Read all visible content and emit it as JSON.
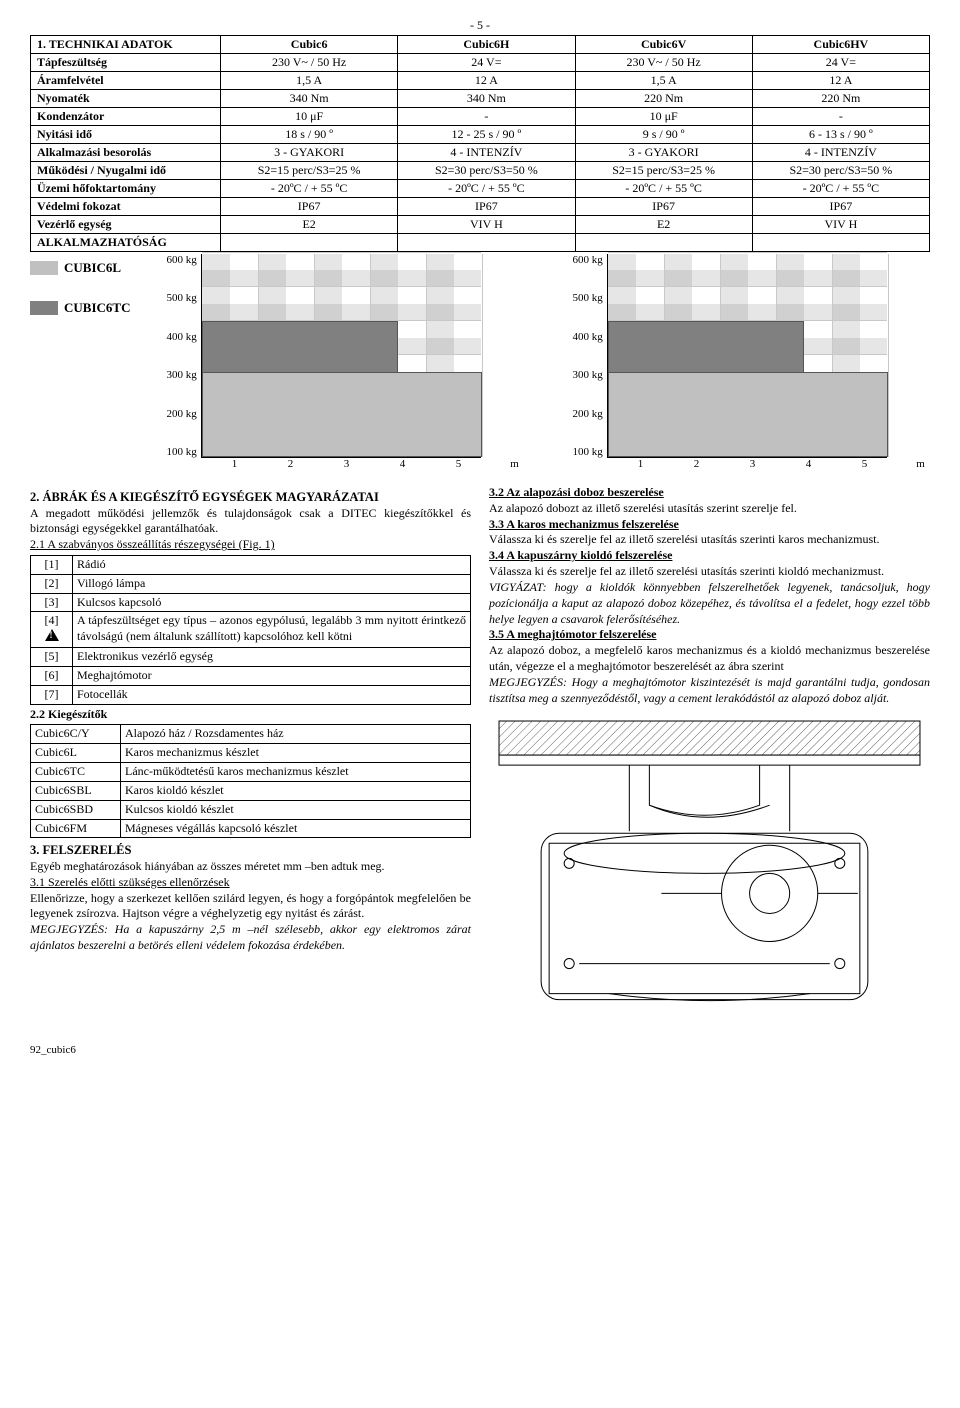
{
  "page_number": "- 5 -",
  "tech_table": {
    "headers": [
      "1. TECHNIKAI ADATOK",
      "Cubic6",
      "Cubic6H",
      "Cubic6V",
      "Cubic6HV"
    ],
    "rows": [
      [
        "Tápfeszültség",
        "230 V~ / 50 Hz",
        "24 V=",
        "230 V~ / 50 Hz",
        "24 V="
      ],
      [
        "Áramfelvétel",
        "1,5 A",
        "12 A",
        "1,5 A",
        "12 A"
      ],
      [
        "Nyomaték",
        "340 Nm",
        "340 Nm",
        "220 Nm",
        "220 Nm"
      ],
      [
        "Kondenzátor",
        "10 μF",
        "-",
        "10 μF",
        "-"
      ],
      [
        "Nyitási idő",
        "18 s / 90 º",
        "12 - 25 s / 90 º",
        "9 s / 90 º",
        "6 - 13 s / 90 º"
      ],
      [
        "Alkalmazási besorolás",
        "3 - GYAKORI",
        "4 - INTENZÍV",
        "3 - GYAKORI",
        "4 - INTENZÍV"
      ],
      [
        "Működési / Nyugalmi idő",
        "S2=15 perc/S3=25 %",
        "S2=30 perc/S3=50 %",
        "S2=15 perc/S3=25 %",
        "S2=30 perc/S3=50 %"
      ],
      [
        "Üzemi hőfoktartomány",
        "- 20ºC / + 55 ºC",
        "- 20ºC / + 55 ºC",
        "- 20ºC / + 55 ºC",
        "- 20ºC / + 55 ºC"
      ],
      [
        "Védelmi fokozat",
        "IP67",
        "IP67",
        "IP67",
        "IP67"
      ],
      [
        "Vezérlő egység",
        "E2",
        "VIV H",
        "E2",
        "VIV H"
      ],
      [
        "ALKALMAZHATÓSÁG",
        "",
        "",
        "",
        ""
      ]
    ]
  },
  "legend": {
    "l": {
      "label": "CUBIC6L",
      "color": "#c0c0c0"
    },
    "tc": {
      "label": "CUBIC6TC",
      "color": "#808080"
    }
  },
  "chart": {
    "type": "bar",
    "y_labels": [
      "600 kg",
      "500 kg",
      "400 kg",
      "300 kg",
      "200 kg",
      "100 kg"
    ],
    "y_max": 600,
    "y_tick_count": 6,
    "x_labels": [
      "1",
      "2",
      "3",
      "4",
      "5",
      "m"
    ],
    "bg_pattern_color": "#e6e6e6",
    "grid_color": "#c8c8c8",
    "series": [
      {
        "color": "#808080",
        "xstart": 0,
        "width_m": 3.5,
        "height_kg": 400
      },
      {
        "color": "#c0c0c0",
        "xstart": 0,
        "width_m": 5,
        "height_kg": 250
      }
    ]
  },
  "section2": {
    "title": "2. ÁBRÁK ÉS A KIEGÉSZÍTŐ EGYSÉGEK MAGYARÁZATAI",
    "intro": "A megadott működési jellemzők és tulajdonságok csak a DITEC kiegészítőkkel és biztonsági egységekkel garantálhatóak.",
    "sub21": "2.1  A szabványos összeállítás részegységei (Fig. 1)",
    "list": [
      [
        "[1]",
        "Rádió"
      ],
      [
        "[2]",
        "Villogó lámpa"
      ],
      [
        "[3]",
        "Kulcsos kapcsoló"
      ],
      [
        "[4]",
        "A tápfeszültséget egy típus – azonos egypólusú, legalább 3 mm nyitott érintkező távolságú (nem általunk szállított) kapcsolóhoz kell kötni"
      ],
      [
        "[5]",
        "Elektronikus vezérlő egység"
      ],
      [
        "[6]",
        "Meghajtómotor"
      ],
      [
        "[7]",
        "Fotocellák"
      ]
    ],
    "sub22": "2.2 Kiegészítők",
    "kits": [
      [
        "Cubic6C/Y",
        "Alapozó ház / Rozsdamentes ház"
      ],
      [
        "Cubic6L",
        "Karos mechanizmus készlet"
      ],
      [
        "Cubic6TC",
        "Lánc-működtetésű karos mechanizmus készlet"
      ],
      [
        "Cubic6SBL",
        "Karos kioldó készlet"
      ],
      [
        "Cubic6SBD",
        "Kulcsos kioldó készlet"
      ],
      [
        "Cubic6FM",
        "Mágneses végállás kapcsoló készlet"
      ]
    ],
    "sec3_title": "3. FELSZERELÉS",
    "sec3_intro": "Egyéb meghatározások hiányában az összes méretet mm –ben adtuk meg.",
    "sub31": "3.1 Szerelés előtti szükséges ellenőrzések",
    "sub31_body": "Ellenőrizze, hogy a szerkezet kellően szilárd legyen, és hogy a forgópántok megfelelően be legyenek zsírozva. Hajtson végre a véghelyzetig egy nyitást és zárást.",
    "sub31_note": "MEGJEGYZÉS: Ha a kapuszárny 2,5 m –nél szélesebb, akkor egy elektromos zárat ajánlatos beszerelni a betörés elleni védelem fokozása érdekében."
  },
  "right": {
    "sub32": "3.2  Az alapozási doboz beszerelése",
    "sub32_body": "Az alapozó dobozt az illető szerelési utasítás szerint szerelje fel.",
    "sub33": "3.3  A karos mechanizmus felszerelése",
    "sub33_body": "Válassza ki és szerelje fel az illető szerelési utasítás szerinti karos mechanizmust.",
    "sub34": "3.4  A kapuszárny kioldó felszerelése",
    "sub34_body": "Válassza ki és szerelje fel az illető szerelési utasítás szerinti kioldó mechanizmust.",
    "sub34_note": "VIGYÁZAT: hogy a kioldók könnyebben felszerelhetőek legyenek, tanácsoljuk, hogy pozícionálja a kaput az alapozó doboz közepéhez, és távolítsa el a fedelet, hogy ezzel több helye legyen a csavarok felerősítéséhez.",
    "sub35": "3.5 A meghajtómotor felszerelése",
    "sub35_body1": "Az alapozó doboz, a megfelelő karos mechanizmus és a kioldó mechanizmus beszerelése után, végezze el a meghajtómotor beszerelését az ábra szerint",
    "sub35_note": "MEGJEGYZÉS: Hogy a meghajtómotor kiszintezését is majd garantálni tudja, gondosan tisztítsa meg a szennyeződéstől, vagy a cement lerakódástól az alapozó doboz alját."
  },
  "footer": "92_cubic6"
}
